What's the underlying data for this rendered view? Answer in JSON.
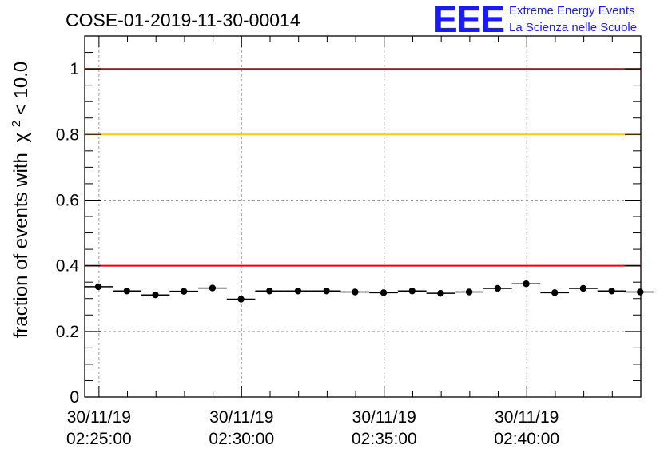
{
  "chart_data": {
    "type": "scatter",
    "title": "COSE-01-2019-11-30-00014",
    "ylabel": "fraction of events with",
    "ylabel_math": {
      "symbol": "χ",
      "superscript": "2",
      "rest": " < 10.0"
    },
    "xlabel": "",
    "ylim": [
      0,
      1.1
    ],
    "yticks": [
      0,
      0.2,
      0.4,
      0.6,
      0.8,
      1
    ],
    "ytick_labels": [
      "0",
      "0.2",
      "0.4",
      "0.6",
      "0.8",
      "1"
    ],
    "xlim_minutes": [
      -0.5,
      19.0
    ],
    "xticks": [
      {
        "minutes": 0,
        "date": "30/11/19",
        "time": "02:25:00"
      },
      {
        "minutes": 5,
        "date": "30/11/19",
        "time": "02:30:00"
      },
      {
        "minutes": 10,
        "date": "30/11/19",
        "time": "02:35:00"
      },
      {
        "minutes": 15,
        "date": "30/11/19",
        "time": "02:40:00"
      }
    ],
    "grid": true,
    "reference_lines": [
      {
        "y": 1.0,
        "color": "#e8000b"
      },
      {
        "y": 0.8,
        "color": "#ffc800"
      },
      {
        "y": 0.4,
        "color": "#e8000b"
      }
    ],
    "series": [
      {
        "name": "fraction",
        "x_minutes": [
          -0.02,
          0.98,
          1.98,
          2.98,
          3.98,
          4.98,
          5.98,
          6.98,
          7.98,
          8.98,
          9.98,
          10.98,
          11.98,
          12.98,
          13.98,
          14.98,
          15.98,
          16.98,
          17.98,
          18.98
        ],
        "y": [
          0.336,
          0.323,
          0.311,
          0.322,
          0.332,
          0.298,
          0.323,
          0.323,
          0.323,
          0.32,
          0.318,
          0.323,
          0.316,
          0.32,
          0.331,
          0.345,
          0.318,
          0.331,
          0.323,
          0.32
        ],
        "bin_half_width_minutes": 0.5
      }
    ]
  },
  "logo": {
    "mark": "EEE",
    "line1": "Extreme Energy Events",
    "line2": "La Scienza nelle Scuole"
  }
}
